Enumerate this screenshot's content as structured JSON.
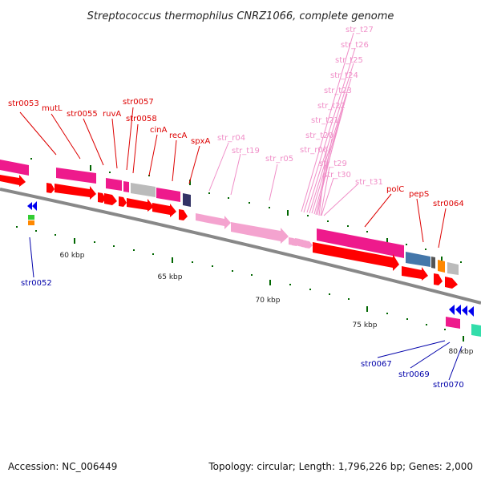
{
  "title": "Streptococcus thermophilus CNRZ1066, complete genome",
  "footer": {
    "accession": "Accession: NC_006449",
    "topology": "Topology: circular; Length: 1,796,226 bp; Genes: 2,000"
  },
  "colors": {
    "cds": "#ff0000",
    "gene": "#ee1a8c",
    "rrna_trna": "#f4a3cf",
    "misc": "#bbbbbb",
    "navy": "#333366",
    "steel": "#4477aa",
    "orange": "#ff8800",
    "green": "#33cc33",
    "blue": "#0000ee",
    "tick": "#006600",
    "line_red": "#dd0000",
    "line_pink": "#f08fc8",
    "line_blue": "#0000aa"
  },
  "scale_labels": [
    "60 kbp",
    "65 kbp",
    "70 kbp",
    "75 kbp",
    "80 kbp"
  ],
  "labels": {
    "red": [
      "str0053",
      "mutL",
      "str0055",
      "ruvA",
      "str0057",
      "str0058",
      "cinA",
      "recA",
      "spxA",
      "polC",
      "pepS",
      "str0064"
    ],
    "pink": [
      "str_t27",
      "str_t26",
      "str_t25",
      "str_t24",
      "str_t23",
      "str_t22",
      "str_t21",
      "str_t20",
      "str_r06",
      "str_t29",
      "str_t30",
      "str_t31",
      "str_r04",
      "str_t19",
      "str_r05"
    ],
    "blue": [
      "str0052",
      "str0067",
      "str0069",
      "str0070"
    ]
  }
}
